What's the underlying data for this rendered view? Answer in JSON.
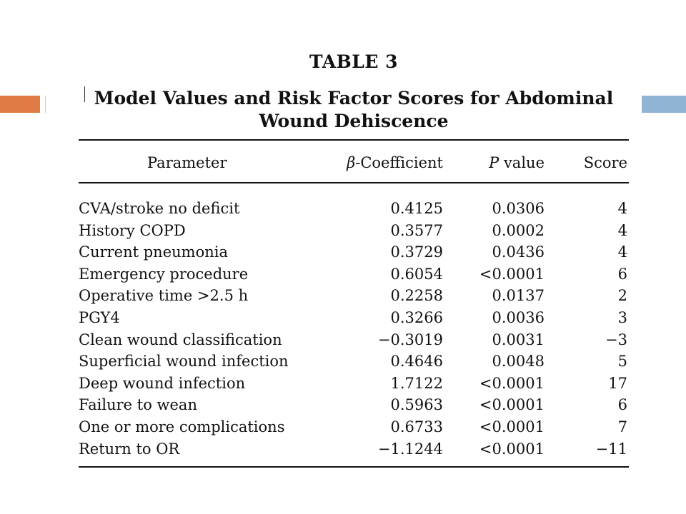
{
  "table": {
    "label": "TABLE 3",
    "title_line1": "Model Values and Risk Factor Scores for Abdominal",
    "title_line2": "Wound Dehiscence",
    "headers": {
      "parameter": "Parameter",
      "beta_symbol": "β",
      "beta_rest": "-Coefficient",
      "p_symbol": "P",
      "p_rest": " value",
      "score": "Score"
    },
    "rows": [
      {
        "parameter": "CVA/stroke no deficit",
        "beta": "0.4125",
        "p": "0.0306",
        "score": "4"
      },
      {
        "parameter": "History COPD",
        "beta": "0.3577",
        "p": "0.0002",
        "score": "4"
      },
      {
        "parameter": "Current pneumonia",
        "beta": "0.3729",
        "p": "0.0436",
        "score": "4"
      },
      {
        "parameter": "Emergency procedure",
        "beta": "0.6054",
        "p": "<0.0001",
        "score": "6"
      },
      {
        "parameter": "Operative time >2.5 h",
        "beta": "0.2258",
        "p": "0.0137",
        "score": "2"
      },
      {
        "parameter": "PGY4",
        "beta": "0.3266",
        "p": "0.0036",
        "score": "3"
      },
      {
        "parameter": "Clean wound classification",
        "beta": "−0.3019",
        "p": "0.0031",
        "score": "−3"
      },
      {
        "parameter": "Superficial wound infection",
        "beta": "0.4646",
        "p": "0.0048",
        "score": "5"
      },
      {
        "parameter": "Deep wound infection",
        "beta": "1.7122",
        "p": "<0.0001",
        "score": "17"
      },
      {
        "parameter": "Failure to wean",
        "beta": "0.5963",
        "p": "<0.0001",
        "score": "6"
      },
      {
        "parameter": "One or more complications",
        "beta": "0.6733",
        "p": "<0.0001",
        "score": "7"
      },
      {
        "parameter": "Return to OR",
        "beta": "−1.1244",
        "p": "<0.0001",
        "score": "−11"
      }
    ]
  },
  "colors": {
    "accent_left": "#e07b45",
    "accent_right": "#92b4d4"
  }
}
